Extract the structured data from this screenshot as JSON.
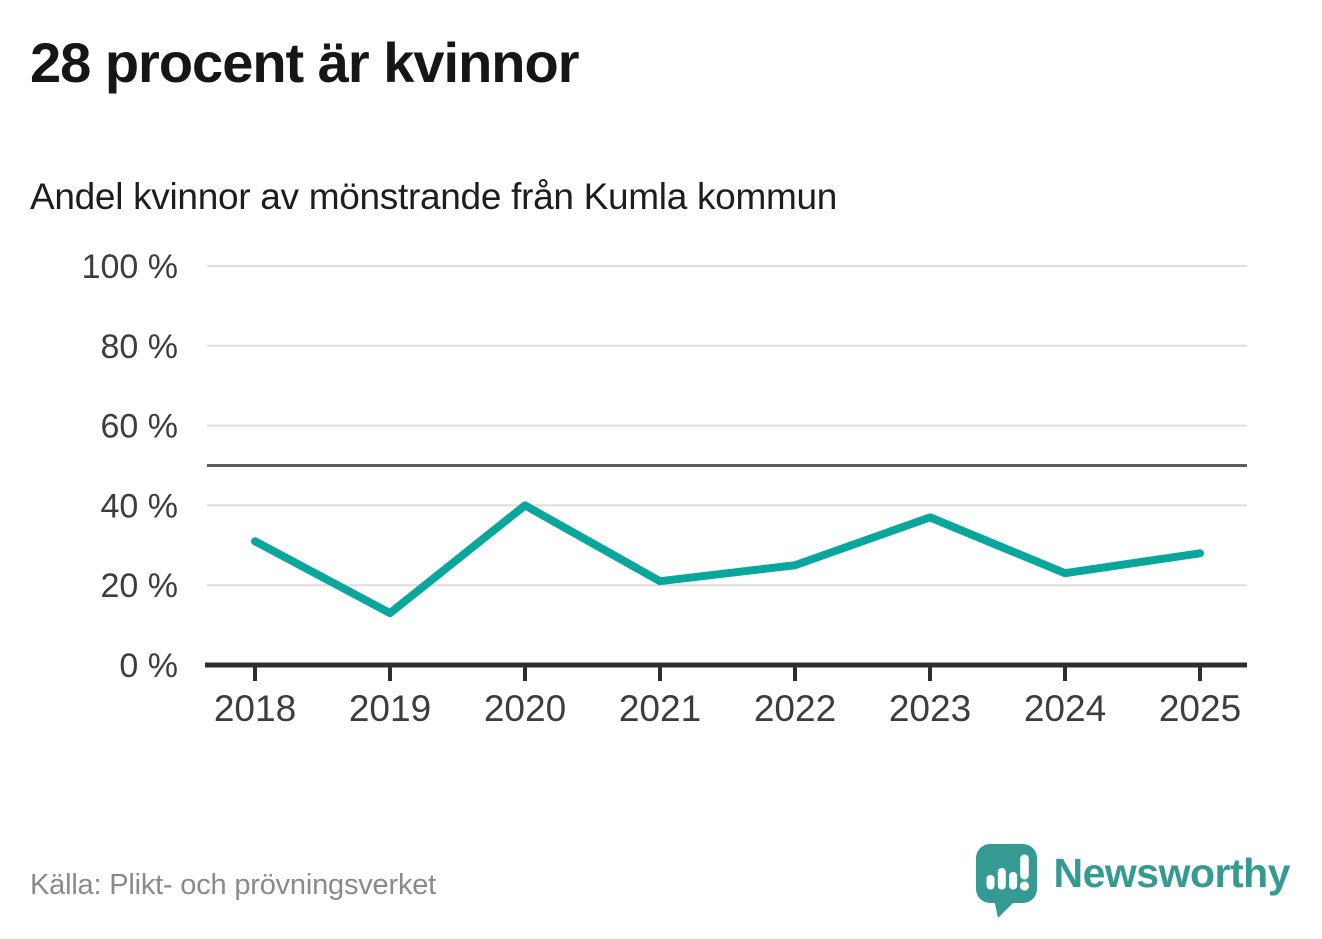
{
  "header": {
    "title": "28 procent är kvinnor",
    "subtitle": "Andel kvinnor av mönstrande från Kumla kommun"
  },
  "chart_data": {
    "type": "line",
    "title": "28 procent är kvinnor",
    "subtitle": "Andel kvinnor av mönstrande från Kumla kommun",
    "x": [
      "2018",
      "2019",
      "2020",
      "2021",
      "2022",
      "2023",
      "2024",
      "2025"
    ],
    "series": [
      {
        "name": "Andel kvinnor av mönstrande",
        "values": [
          31,
          13,
          40,
          21,
          25,
          37,
          23,
          28
        ]
      }
    ],
    "ylim": [
      0,
      100
    ],
    "yticks": [
      0,
      20,
      40,
      60,
      80,
      100
    ],
    "ytick_suffix": " %",
    "reference_line": 50,
    "grid": true,
    "legend": "none",
    "colors": {
      "line": "#09a69b",
      "grid": "#dedede",
      "reference": "#5c5c5c",
      "axis": "#2e2e2e",
      "tick_label": "#3d3d3d"
    }
  },
  "footer": {
    "source": "Källa: Plikt- och prövningsverket",
    "logo": {
      "text": "Newsworthy",
      "icon": "newsworthy-speech-bubble-chart-icon",
      "color": "#359a92"
    }
  }
}
